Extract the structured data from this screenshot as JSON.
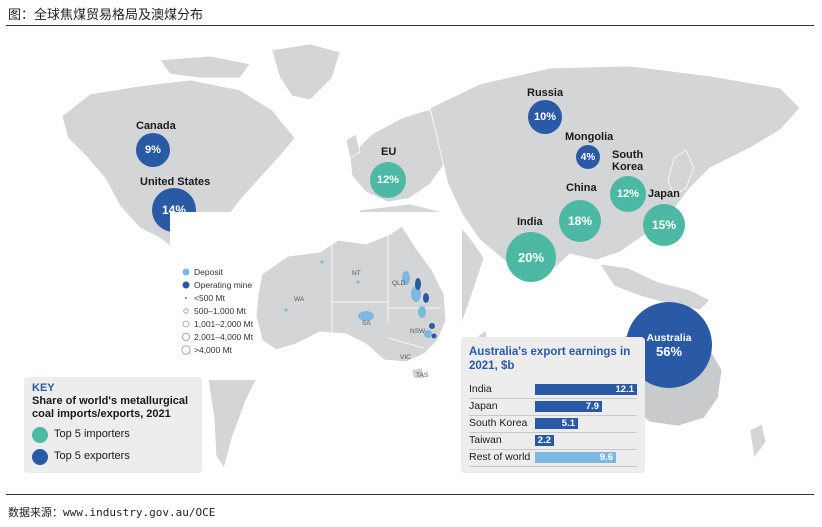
{
  "figure_title": "图：全球焦煤贸易格局及澳煤分布",
  "source_note": "数据来源：www.industry.gov.au/OCE",
  "colors": {
    "importer": "#4db8a4",
    "exporter": "#2a5aa6",
    "land": "#d4d5d7",
    "deposit": "#7db8e0",
    "operating_mine": "#2a5aa6",
    "rest_of_world_bar": "#7db8e0"
  },
  "bubbles": [
    {
      "country": "Canada",
      "value": "9%",
      "role": "exporter"
    },
    {
      "country": "United States",
      "value": "14%",
      "role": "exporter"
    },
    {
      "country": "EU",
      "value": "12%",
      "role": "importer"
    },
    {
      "country": "Russia",
      "value": "10%",
      "role": "exporter"
    },
    {
      "country": "Mongolia",
      "value": "4%",
      "role": "exporter"
    },
    {
      "country": "South Korea",
      "value": "12%",
      "role": "importer"
    },
    {
      "country": "China",
      "value": "18%",
      "role": "importer"
    },
    {
      "country": "Japan",
      "value": "15%",
      "role": "importer"
    },
    {
      "country": "India",
      "value": "20%",
      "role": "importer"
    },
    {
      "country": "Australia",
      "value": "56%",
      "role": "exporter"
    }
  ],
  "inset_map": {
    "legend": [
      "Deposit",
      "Operating mine",
      "<500 Mt",
      "500–1,000 Mt",
      "1,001–2,000 Mt",
      "2,001–4,000 Mt",
      ">4,000 Mt"
    ],
    "states": [
      "WA",
      "NT",
      "SA",
      "QLD",
      "NSW",
      "VIC",
      "TAS"
    ]
  },
  "key": {
    "title": "KEY",
    "subtitle": "Share of world's metallurgical coal imports/exports, 2021",
    "items": [
      "Top 5 importers",
      "Top 5 exporters"
    ]
  },
  "chart_data": {
    "type": "bar",
    "title": "Australia's export earnings in 2021, $b",
    "categories": [
      "India",
      "Japan",
      "South Korea",
      "Taiwan",
      "Rest of world"
    ],
    "values": [
      12.1,
      7.9,
      5.1,
      2.2,
      9.6
    ],
    "value_labels": [
      "12.1",
      "7.9",
      "5.1",
      "2.2",
      "9.6"
    ],
    "xlabel": "",
    "ylabel": "",
    "xlim": [
      0,
      12.1
    ],
    "grid": false
  }
}
